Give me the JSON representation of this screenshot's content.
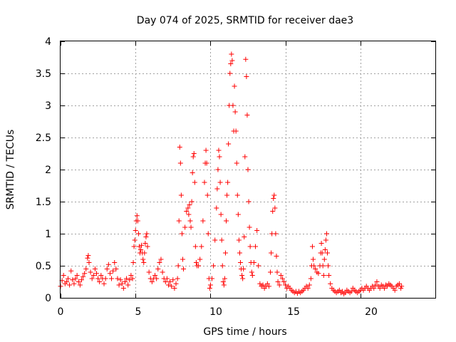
{
  "chart_data": {
    "type": "scatter",
    "title": "Day 074 of 2025, SRMTID for receiver dae3",
    "xlabel": "GPS time / hours",
    "ylabel": "SRMTID / TECUs",
    "xlim": [
      0,
      25
    ],
    "ylim": [
      0,
      4
    ],
    "xticks": [
      "0",
      "5",
      "10",
      "15",
      "20"
    ],
    "yticks": [
      "0",
      "0.5",
      "1",
      "1.5",
      "2",
      "2.5",
      "3",
      "3.5",
      "4"
    ],
    "grid": true,
    "marker": "plus",
    "color": "#ff0000",
    "series": [
      {
        "name": "SRMTID",
        "points": [
          [
            0.0,
            0.18
          ],
          [
            0.1,
            0.27
          ],
          [
            0.2,
            0.35
          ],
          [
            0.3,
            0.22
          ],
          [
            0.4,
            0.25
          ],
          [
            0.5,
            0.3
          ],
          [
            0.6,
            0.2
          ],
          [
            0.7,
            0.42
          ],
          [
            0.8,
            0.28
          ],
          [
            0.9,
            0.22
          ],
          [
            1.0,
            0.3
          ],
          [
            1.1,
            0.35
          ],
          [
            1.2,
            0.25
          ],
          [
            1.3,
            0.2
          ],
          [
            1.4,
            0.28
          ],
          [
            1.5,
            0.33
          ],
          [
            1.6,
            0.38
          ],
          [
            1.7,
            0.45
          ],
          [
            1.8,
            0.62
          ],
          [
            1.85,
            0.66
          ],
          [
            1.9,
            0.55
          ],
          [
            2.0,
            0.4
          ],
          [
            2.1,
            0.3
          ],
          [
            2.2,
            0.35
          ],
          [
            2.3,
            0.45
          ],
          [
            2.4,
            0.38
          ],
          [
            2.5,
            0.3
          ],
          [
            2.6,
            0.25
          ],
          [
            2.7,
            0.35
          ],
          [
            2.8,
            0.3
          ],
          [
            2.9,
            0.22
          ],
          [
            3.0,
            0.3
          ],
          [
            3.1,
            0.45
          ],
          [
            3.2,
            0.52
          ],
          [
            3.3,
            0.38
          ],
          [
            3.4,
            0.3
          ],
          [
            3.5,
            0.42
          ],
          [
            3.6,
            0.55
          ],
          [
            3.7,
            0.45
          ],
          [
            3.8,
            0.3
          ],
          [
            3.9,
            0.2
          ],
          [
            4.0,
            0.28
          ],
          [
            4.1,
            0.22
          ],
          [
            4.2,
            0.15
          ],
          [
            4.3,
            0.25
          ],
          [
            4.4,
            0.3
          ],
          [
            4.5,
            0.2
          ],
          [
            4.6,
            0.28
          ],
          [
            4.7,
            0.35
          ],
          [
            4.8,
            0.3
          ],
          [
            4.85,
            0.55
          ],
          [
            4.9,
            0.8
          ],
          [
            4.95,
            0.9
          ],
          [
            5.0,
            1.05
          ],
          [
            5.05,
            1.2
          ],
          [
            5.1,
            1.28
          ],
          [
            5.15,
            1.2
          ],
          [
            5.2,
            1.0
          ],
          [
            5.25,
            0.8
          ],
          [
            5.3,
            0.7
          ],
          [
            5.35,
            0.75
          ],
          [
            5.4,
            0.82
          ],
          [
            5.45,
            0.7
          ],
          [
            5.5,
            0.6
          ],
          [
            5.55,
            0.55
          ],
          [
            5.6,
            0.7
          ],
          [
            5.65,
            0.85
          ],
          [
            5.7,
            0.95
          ],
          [
            5.75,
            1.0
          ],
          [
            5.8,
            0.8
          ],
          [
            5.9,
            0.4
          ],
          [
            6.0,
            0.3
          ],
          [
            6.1,
            0.25
          ],
          [
            6.2,
            0.3
          ],
          [
            6.3,
            0.35
          ],
          [
            6.4,
            0.3
          ],
          [
            6.5,
            0.45
          ],
          [
            6.6,
            0.55
          ],
          [
            6.7,
            0.6
          ],
          [
            6.8,
            0.4
          ],
          [
            6.9,
            0.3
          ],
          [
            7.0,
            0.25
          ],
          [
            7.1,
            0.3
          ],
          [
            7.2,
            0.2
          ],
          [
            7.3,
            0.25
          ],
          [
            7.4,
            0.18
          ],
          [
            7.5,
            0.28
          ],
          [
            7.6,
            0.15
          ],
          [
            7.7,
            0.22
          ],
          [
            7.8,
            0.3
          ],
          [
            7.85,
            0.5
          ],
          [
            7.9,
            1.2
          ],
          [
            7.95,
            2.35
          ],
          [
            8.0,
            2.1
          ],
          [
            8.05,
            1.6
          ],
          [
            8.1,
            1.0
          ],
          [
            8.15,
            0.6
          ],
          [
            8.2,
            0.45
          ],
          [
            8.3,
            1.1
          ],
          [
            8.4,
            1.35
          ],
          [
            8.5,
            1.4
          ],
          [
            8.55,
            1.3
          ],
          [
            8.6,
            1.45
          ],
          [
            8.65,
            1.2
          ],
          [
            8.7,
            1.1
          ],
          [
            8.75,
            1.5
          ],
          [
            8.8,
            1.95
          ],
          [
            8.85,
            2.2
          ],
          [
            8.9,
            2.25
          ],
          [
            8.95,
            1.8
          ],
          [
            9.0,
            0.8
          ],
          [
            9.05,
            0.55
          ],
          [
            9.1,
            0.5
          ],
          [
            9.2,
            0.5
          ],
          [
            9.3,
            0.6
          ],
          [
            9.4,
            0.8
          ],
          [
            9.5,
            1.2
          ],
          [
            9.6,
            1.8
          ],
          [
            9.65,
            2.1
          ],
          [
            9.7,
            2.3
          ],
          [
            9.75,
            2.1
          ],
          [
            9.8,
            1.6
          ],
          [
            9.85,
            1.0
          ],
          [
            9.9,
            0.3
          ],
          [
            9.95,
            0.15
          ],
          [
            10.0,
            0.2
          ],
          [
            10.1,
            0.3
          ],
          [
            10.2,
            0.5
          ],
          [
            10.3,
            0.9
          ],
          [
            10.4,
            1.4
          ],
          [
            10.45,
            1.7
          ],
          [
            10.5,
            2.0
          ],
          [
            10.55,
            2.3
          ],
          [
            10.6,
            2.2
          ],
          [
            10.65,
            1.8
          ],
          [
            10.7,
            1.3
          ],
          [
            10.75,
            0.9
          ],
          [
            10.8,
            0.5
          ],
          [
            10.85,
            0.25
          ],
          [
            10.9,
            0.2
          ],
          [
            10.95,
            0.3
          ],
          [
            11.0,
            0.7
          ],
          [
            11.05,
            1.2
          ],
          [
            11.1,
            1.6
          ],
          [
            11.15,
            1.8
          ],
          [
            11.2,
            2.4
          ],
          [
            11.25,
            3.0
          ],
          [
            11.3,
            3.5
          ],
          [
            11.35,
            3.65
          ],
          [
            11.4,
            3.8
          ],
          [
            11.45,
            3.7
          ],
          [
            11.5,
            3.0
          ],
          [
            11.55,
            2.6
          ],
          [
            11.6,
            3.3
          ],
          [
            11.65,
            2.9
          ],
          [
            11.7,
            2.6
          ],
          [
            11.75,
            2.1
          ],
          [
            11.8,
            1.6
          ],
          [
            11.85,
            1.3
          ],
          [
            11.9,
            0.9
          ],
          [
            11.95,
            0.7
          ],
          [
            12.0,
            0.55
          ],
          [
            12.05,
            0.45
          ],
          [
            12.1,
            0.35
          ],
          [
            12.15,
            0.3
          ],
          [
            12.2,
            0.45
          ],
          [
            12.25,
            0.95
          ],
          [
            12.3,
            2.2
          ],
          [
            12.35,
            3.72
          ],
          [
            12.4,
            3.45
          ],
          [
            12.45,
            2.85
          ],
          [
            12.5,
            2.0
          ],
          [
            12.55,
            1.5
          ],
          [
            12.6,
            1.1
          ],
          [
            12.65,
            0.8
          ],
          [
            12.7,
            0.55
          ],
          [
            12.75,
            0.4
          ],
          [
            12.8,
            0.35
          ],
          [
            12.9,
            0.55
          ],
          [
            13.0,
            0.8
          ],
          [
            13.1,
            1.05
          ],
          [
            13.2,
            0.5
          ],
          [
            13.3,
            0.22
          ],
          [
            13.4,
            0.18
          ],
          [
            13.5,
            0.2
          ],
          [
            13.6,
            0.15
          ],
          [
            13.7,
            0.18
          ],
          [
            13.8,
            0.22
          ],
          [
            13.9,
            0.18
          ],
          [
            14.0,
            0.4
          ],
          [
            14.05,
            0.7
          ],
          [
            14.1,
            1.0
          ],
          [
            14.15,
            1.35
          ],
          [
            14.2,
            1.55
          ],
          [
            14.25,
            1.6
          ],
          [
            14.3,
            1.4
          ],
          [
            14.35,
            1.0
          ],
          [
            14.4,
            0.65
          ],
          [
            14.45,
            0.4
          ],
          [
            14.5,
            0.25
          ],
          [
            14.6,
            0.2
          ],
          [
            14.7,
            0.35
          ],
          [
            14.8,
            0.3
          ],
          [
            14.9,
            0.25
          ],
          [
            15.0,
            0.2
          ],
          [
            15.1,
            0.15
          ],
          [
            15.2,
            0.18
          ],
          [
            15.3,
            0.15
          ],
          [
            15.4,
            0.12
          ],
          [
            15.5,
            0.1
          ],
          [
            15.6,
            0.08
          ],
          [
            15.7,
            0.1
          ],
          [
            15.8,
            0.07
          ],
          [
            15.9,
            0.1
          ],
          [
            16.0,
            0.08
          ],
          [
            16.1,
            0.1
          ],
          [
            16.2,
            0.12
          ],
          [
            16.3,
            0.15
          ],
          [
            16.4,
            0.18
          ],
          [
            16.5,
            0.15
          ],
          [
            16.6,
            0.2
          ],
          [
            16.7,
            0.3
          ],
          [
            16.75,
            0.5
          ],
          [
            16.8,
            0.8
          ],
          [
            16.85,
            0.6
          ],
          [
            16.9,
            0.5
          ],
          [
            17.0,
            0.45
          ],
          [
            17.1,
            0.4
          ],
          [
            17.2,
            0.38
          ],
          [
            17.3,
            0.5
          ],
          [
            17.35,
            0.7
          ],
          [
            17.4,
            0.85
          ],
          [
            17.45,
            0.7
          ],
          [
            17.5,
            0.5
          ],
          [
            17.55,
            0.35
          ],
          [
            17.6,
            0.6
          ],
          [
            17.65,
            0.75
          ],
          [
            17.7,
            0.9
          ],
          [
            17.75,
            1.0
          ],
          [
            17.8,
            0.7
          ],
          [
            17.85,
            0.5
          ],
          [
            17.9,
            0.35
          ],
          [
            18.0,
            0.22
          ],
          [
            18.1,
            0.15
          ],
          [
            18.2,
            0.12
          ],
          [
            18.3,
            0.1
          ],
          [
            18.4,
            0.08
          ],
          [
            18.5,
            0.1
          ],
          [
            18.6,
            0.12
          ],
          [
            18.7,
            0.08
          ],
          [
            18.8,
            0.1
          ],
          [
            18.9,
            0.06
          ],
          [
            19.0,
            0.08
          ],
          [
            19.1,
            0.12
          ],
          [
            19.2,
            0.1
          ],
          [
            19.3,
            0.08
          ],
          [
            19.4,
            0.1
          ],
          [
            19.5,
            0.15
          ],
          [
            19.6,
            0.12
          ],
          [
            19.7,
            0.1
          ],
          [
            19.8,
            0.08
          ],
          [
            19.9,
            0.1
          ],
          [
            20.0,
            0.12
          ],
          [
            20.1,
            0.15
          ],
          [
            20.2,
            0.12
          ],
          [
            20.3,
            0.15
          ],
          [
            20.4,
            0.18
          ],
          [
            20.5,
            0.15
          ],
          [
            20.6,
            0.12
          ],
          [
            20.7,
            0.15
          ],
          [
            20.8,
            0.18
          ],
          [
            20.9,
            0.15
          ],
          [
            21.0,
            0.2
          ],
          [
            21.1,
            0.25
          ],
          [
            21.2,
            0.18
          ],
          [
            21.3,
            0.15
          ],
          [
            21.4,
            0.2
          ],
          [
            21.5,
            0.18
          ],
          [
            21.6,
            0.15
          ],
          [
            21.7,
            0.2
          ],
          [
            21.8,
            0.18
          ],
          [
            21.9,
            0.22
          ],
          [
            22.0,
            0.2
          ],
          [
            22.1,
            0.18
          ],
          [
            22.2,
            0.15
          ],
          [
            22.3,
            0.12
          ],
          [
            22.4,
            0.18
          ],
          [
            22.5,
            0.2
          ],
          [
            22.6,
            0.22
          ],
          [
            22.7,
            0.15
          ],
          [
            22.75,
            0.18
          ]
        ]
      }
    ]
  }
}
